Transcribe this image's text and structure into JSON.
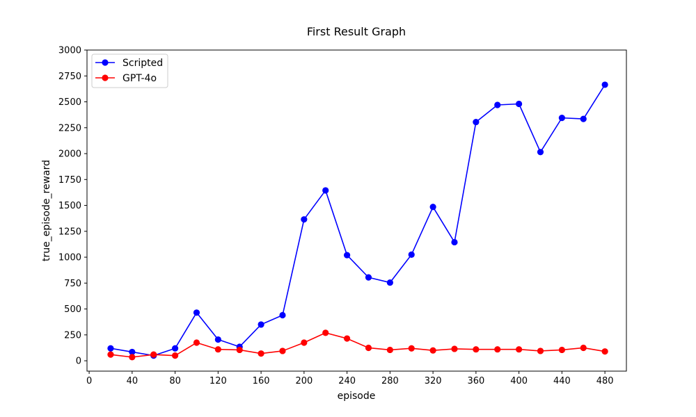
{
  "chart_data": {
    "type": "line",
    "title": "First Result Graph",
    "xlabel": "episode",
    "ylabel": "true_episode_reward",
    "xlim": [
      -2,
      500
    ],
    "ylim": [
      -100,
      3000
    ],
    "x_ticks": [
      0,
      40,
      80,
      120,
      160,
      200,
      240,
      280,
      320,
      360,
      400,
      440,
      480
    ],
    "y_ticks": [
      0,
      250,
      500,
      750,
      1000,
      1250,
      1500,
      1750,
      2000,
      2250,
      2500,
      2750,
      3000
    ],
    "legend_position": "top-left",
    "grid": false,
    "x": [
      20,
      40,
      60,
      80,
      100,
      120,
      140,
      160,
      180,
      200,
      220,
      240,
      260,
      280,
      300,
      320,
      340,
      360,
      380,
      400,
      420,
      440,
      460,
      480
    ],
    "series": [
      {
        "name": "Scripted",
        "color": "#0000ff",
        "marker": "circle",
        "values": [
          120,
          85,
          50,
          120,
          465,
          205,
          135,
          350,
          440,
          1365,
          1645,
          1020,
          805,
          755,
          1025,
          1485,
          1145,
          2305,
          2470,
          2480,
          2015,
          2345,
          2335,
          2665
        ]
      },
      {
        "name": "GPT-4o",
        "color": "#ff0000",
        "marker": "circle",
        "values": [
          60,
          35,
          60,
          50,
          175,
          110,
          105,
          70,
          95,
          175,
          270,
          215,
          125,
          105,
          120,
          100,
          115,
          110,
          110,
          110,
          95,
          105,
          125,
          90
        ]
      }
    ]
  }
}
